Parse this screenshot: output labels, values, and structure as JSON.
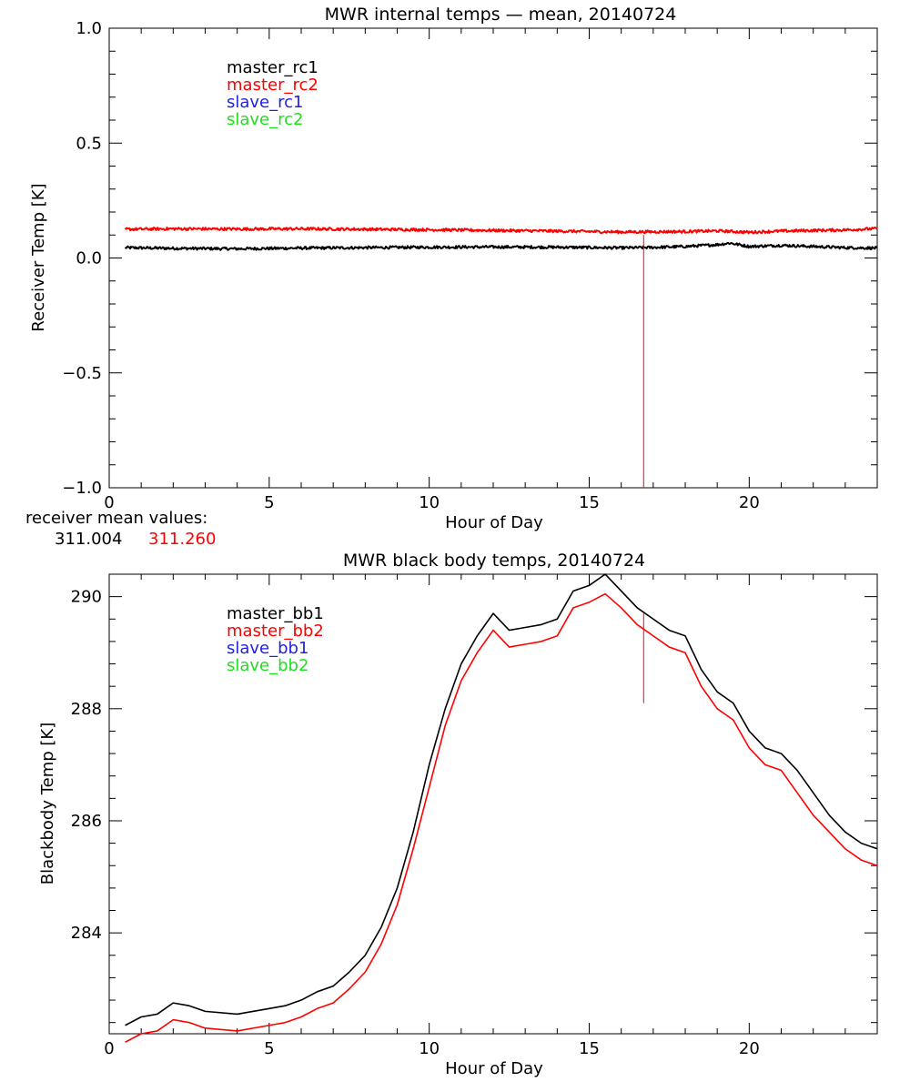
{
  "colors": {
    "master_rc1": "#000000",
    "master_rc2": "#ff0000",
    "slave_rc1": "#2222dd",
    "slave_rc2": "#22dd22",
    "axis": "#000000",
    "background": "#ffffff"
  },
  "mean_values": {
    "label": "receiver mean values:",
    "v1": "311.004",
    "v2": "311.260"
  },
  "chart_data": [
    {
      "type": "line",
      "title": "MWR internal temps — mean, 20140724",
      "xlabel": "Hour of Day",
      "ylabel": "Receiver Temp [K]",
      "xlim": [
        0,
        24
      ],
      "ylim": [
        -1.0,
        1.0
      ],
      "xticks": [
        0,
        5,
        10,
        15,
        20
      ],
      "yticks": [
        -1.0,
        -0.5,
        0.0,
        0.5,
        1.0
      ],
      "ytick_labels": [
        "−1.0",
        "−0.5",
        "0.0",
        "0.5",
        "1.0"
      ],
      "grid": false,
      "legend_placement": "top-left",
      "legend": [
        "master_rc1",
        "master_rc2",
        "slave_rc1",
        "slave_rc2"
      ],
      "series": [
        {
          "name": "master_rc1",
          "color": "#000000",
          "noise": 0.006,
          "x": [
            0.5,
            2,
            4,
            6,
            8,
            10,
            12,
            14,
            16,
            17,
            18,
            19,
            19.4,
            20,
            21,
            22,
            23,
            24
          ],
          "y": [
            0.045,
            0.042,
            0.04,
            0.043,
            0.045,
            0.047,
            0.048,
            0.047,
            0.044,
            0.046,
            0.05,
            0.058,
            0.065,
            0.05,
            0.055,
            0.05,
            0.045,
            0.043
          ]
        },
        {
          "name": "master_rc2",
          "color": "#ff0000",
          "noise": 0.006,
          "x": [
            0.5,
            2,
            4,
            6,
            8,
            10,
            12,
            14,
            16,
            18,
            19,
            20,
            21,
            22,
            23,
            24
          ],
          "y": [
            0.125,
            0.127,
            0.126,
            0.127,
            0.125,
            0.123,
            0.12,
            0.117,
            0.113,
            0.115,
            0.118,
            0.112,
            0.117,
            0.12,
            0.122,
            0.128
          ]
        }
      ],
      "spike": {
        "x": 16.7,
        "y_top": 0.1,
        "y_bottom": -1.0
      }
    },
    {
      "type": "line",
      "title": "MWR black body temps, 20140724",
      "xlabel": "Hour of Day",
      "ylabel": "Blackbody Temp [K]",
      "xlim": [
        0,
        24
      ],
      "ylim": [
        282.2,
        290.4
      ],
      "xticks": [
        0,
        5,
        10,
        15,
        20
      ],
      "yticks": [
        284,
        286,
        288,
        290
      ],
      "ytick_labels": [
        "284",
        "286",
        "288",
        "290"
      ],
      "grid": false,
      "legend_placement": "top-left",
      "legend": [
        "master_bb1",
        "master_bb2",
        "slave_bb1",
        "slave_bb2"
      ],
      "series": [
        {
          "name": "master_bb1",
          "color": "#000000",
          "x": [
            0.5,
            1,
            1.5,
            2,
            2.5,
            3,
            4,
            5,
            5.5,
            6,
            6.5,
            7,
            7.5,
            8,
            8.5,
            9,
            9.5,
            10,
            10.5,
            11,
            11.5,
            12,
            12.5,
            13,
            13.5,
            14,
            14.5,
            15,
            15.5,
            16,
            16.5,
            17,
            17.5,
            18,
            18.5,
            19,
            19.5,
            20,
            20.5,
            21,
            21.5,
            22,
            22.5,
            23,
            23.5,
            24
          ],
          "y": [
            282.35,
            282.5,
            282.55,
            282.75,
            282.7,
            282.6,
            282.55,
            282.65,
            282.7,
            282.8,
            282.95,
            283.05,
            283.3,
            283.6,
            284.1,
            284.8,
            285.8,
            287.0,
            288.0,
            288.8,
            289.3,
            289.7,
            289.4,
            289.45,
            289.5,
            289.6,
            290.1,
            290.2,
            290.4,
            290.1,
            289.8,
            289.6,
            289.4,
            289.3,
            288.7,
            288.3,
            288.1,
            287.6,
            287.3,
            287.2,
            286.9,
            286.5,
            286.1,
            285.8,
            285.6,
            285.5
          ]
        },
        {
          "name": "master_bb2",
          "color": "#ff0000",
          "x": [
            0.5,
            1,
            1.5,
            2,
            2.5,
            3,
            4,
            5,
            5.5,
            6,
            6.5,
            7,
            7.5,
            8,
            8.5,
            9,
            9.5,
            10,
            10.5,
            11,
            11.5,
            12,
            12.5,
            13,
            13.5,
            14,
            14.5,
            15,
            15.5,
            16,
            16.5,
            17,
            17.5,
            18,
            18.5,
            19,
            19.5,
            20,
            20.5,
            21,
            21.5,
            22,
            22.5,
            23,
            23.5,
            24
          ],
          "y": [
            282.05,
            282.2,
            282.25,
            282.45,
            282.4,
            282.3,
            282.25,
            282.35,
            282.4,
            282.5,
            282.65,
            282.75,
            283.0,
            283.3,
            283.8,
            284.5,
            285.5,
            286.6,
            287.7,
            288.5,
            289.0,
            289.4,
            289.1,
            289.15,
            289.2,
            289.3,
            289.8,
            289.9,
            290.05,
            289.8,
            289.5,
            289.3,
            289.1,
            289.0,
            288.4,
            288.0,
            287.8,
            287.3,
            287.0,
            286.9,
            286.5,
            286.1,
            285.8,
            285.5,
            285.3,
            285.2
          ]
        }
      ],
      "spike": {
        "x": 16.7,
        "y_top": 289.7,
        "y_bottom": 288.1
      }
    }
  ]
}
